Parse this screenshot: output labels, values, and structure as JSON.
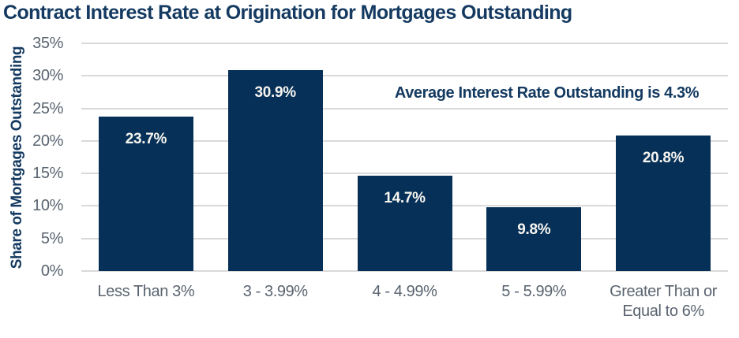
{
  "page": {
    "background": "#ffffff"
  },
  "header": {
    "title": "Contract Interest Rate at Origination for Mortgages Outstanding"
  },
  "chart_data": {
    "type": "bar",
    "title": "Contract Interest Rate at Origination for Mortgages Outstanding",
    "categories": [
      "Less Than 3%",
      "3 - 3.99%",
      "4 - 4.99%",
      "5 - 5.99%",
      "Greater Than or Equal to 6%"
    ],
    "values": [
      23.7,
      30.9,
      14.7,
      9.8,
      20.8
    ],
    "value_labels": [
      "23.7%",
      "30.9%",
      "14.7%",
      "9.8%",
      "20.8%"
    ],
    "xlabel": "",
    "ylabel": "Share of Mortgages Outstanding",
    "ylim": [
      0,
      35
    ],
    "ytick_step": 5,
    "ytick_labels": [
      "0%",
      "5%",
      "10%",
      "15%",
      "20%",
      "25%",
      "30%",
      "35%"
    ],
    "annotation": "Average Interest Rate Outstanding is 4.3%",
    "grid": true,
    "legend": false,
    "colors": {
      "bar": "#063058",
      "title": "#143a61",
      "annotation": "#143a61",
      "axis_title": "#143a61",
      "tick_label": "#5a6470",
      "gridline": "#d9d9d9",
      "data_label": "#f7f5ef",
      "background": "#ffffff"
    }
  }
}
